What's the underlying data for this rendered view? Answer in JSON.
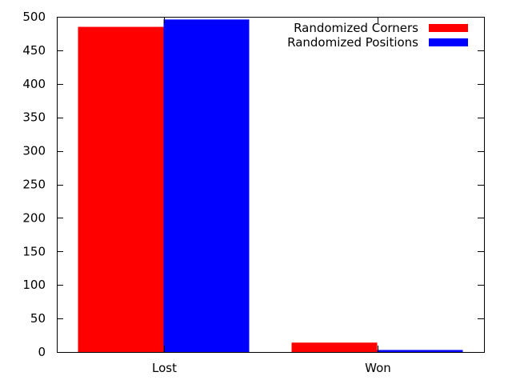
{
  "chart_data": {
    "type": "bar",
    "categories": [
      "Lost",
      "Won"
    ],
    "series": [
      {
        "name": "Randomized Corners",
        "color": "#ff0000",
        "values": [
          485,
          14
        ]
      },
      {
        "name": "Randomized Positions",
        "color": "#0000ff",
        "values": [
          496,
          3
        ]
      }
    ],
    "ylim": [
      0,
      500
    ],
    "yticks": [
      0,
      50,
      100,
      150,
      200,
      250,
      300,
      350,
      400,
      450,
      500
    ],
    "legend_position": "top-right",
    "grid": false
  }
}
